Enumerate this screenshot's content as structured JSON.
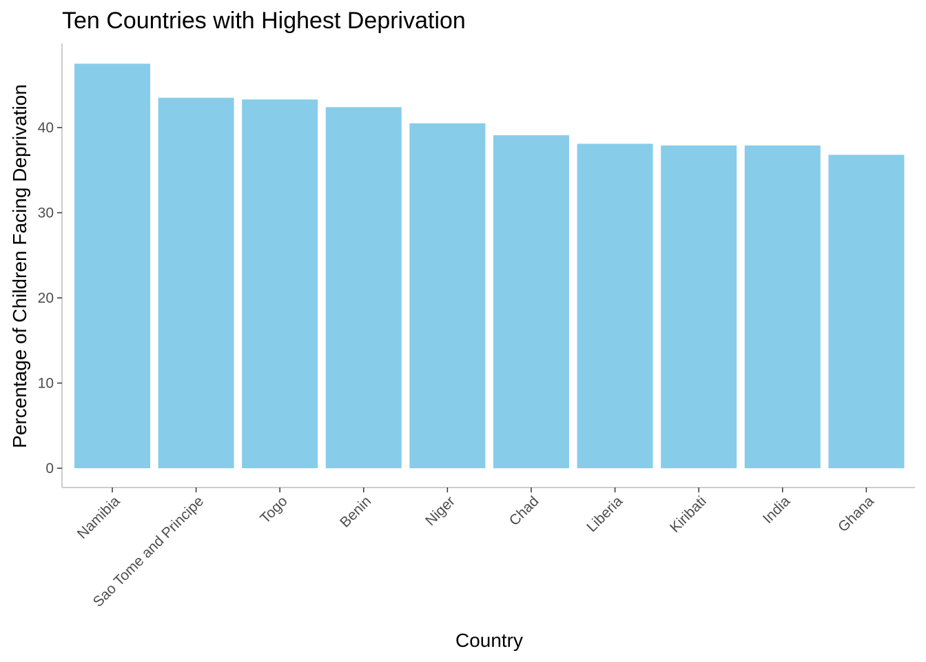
{
  "chart_data": {
    "type": "bar",
    "title": "Ten Countries with Highest Deprivation",
    "xlabel": "Country",
    "ylabel": "Percentage of Children Facing Deprivation",
    "categories": [
      "Namibia",
      "Sao Tome and Principe",
      "Togo",
      "Benin",
      "Niger",
      "Chad",
      "Liberia",
      "Kiribati",
      "India",
      "Ghana"
    ],
    "values": [
      47.5,
      43.5,
      43.3,
      42.4,
      40.5,
      39.1,
      38.1,
      37.9,
      37.9,
      36.8
    ],
    "ylim": [
      0,
      50
    ],
    "yticks": [
      0,
      10,
      20,
      30,
      40
    ],
    "grid": false,
    "legend": "none",
    "bar_color": "#87CDE9"
  }
}
